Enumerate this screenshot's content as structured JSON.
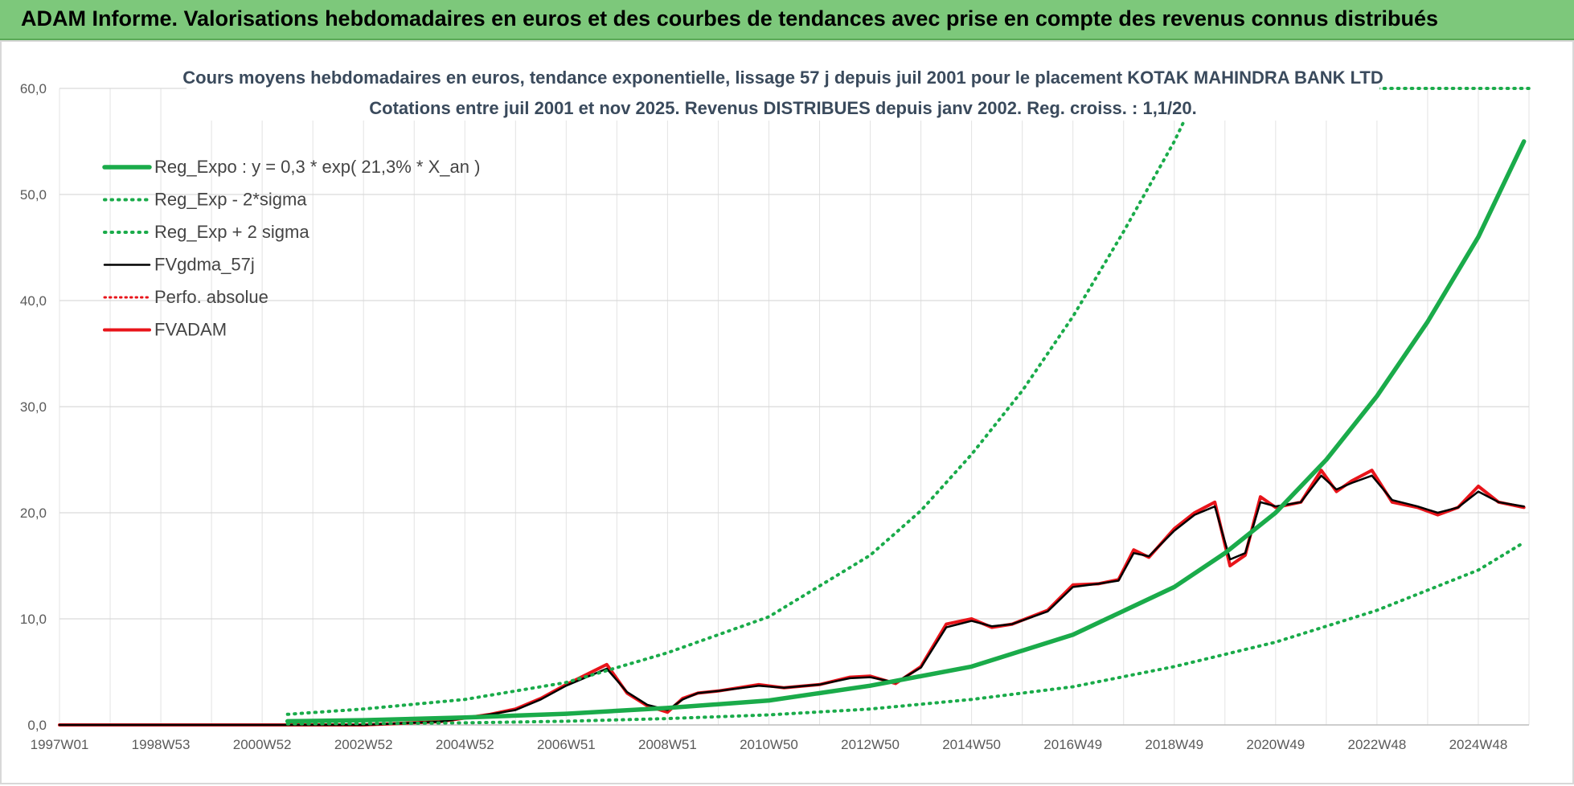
{
  "banner": {
    "title": "ADAM Informe. Valorisations hebdomadaires en euros et des courbes de tendances avec prise en compte des revenus connus distribués"
  },
  "colors": {
    "banner_bg": "#7dc87b",
    "regression": "#1aab4a",
    "price": "#e8141a",
    "smooth": "#000000"
  },
  "chart_data": {
    "type": "line",
    "title_line1": "Cours moyens hebdomadaires en euros, tendance exponentielle, lissage 57 j depuis juil 2001 pour le placement KOTAK MAHINDRA BANK LTD",
    "title_line2": "Cotations entre juil 2001 et nov 2025. Revenus DISTRIBUES depuis janv 2002. Reg. croiss. : 1,1/20.",
    "xlim": [
      1997.0,
      2026.0
    ],
    "ylim": [
      0,
      60
    ],
    "yticks": [
      0,
      10,
      20,
      30,
      40,
      50,
      60
    ],
    "ytick_labels": [
      "0,0",
      "10,0",
      "20,0",
      "30,0",
      "40,0",
      "50,0",
      "60,0"
    ],
    "xticks": [
      1997.0,
      1999.0,
      2001.0,
      2003.0,
      2005.0,
      2007.0,
      2009.0,
      2011.0,
      2013.0,
      2015.0,
      2017.0,
      2019.0,
      2021.0,
      2023.0,
      2025.0
    ],
    "xtick_labels": [
      "1997W01",
      "1998W53",
      "2000W52",
      "2002W52",
      "2004W52",
      "2006W51",
      "2008W51",
      "2010W50",
      "2012W50",
      "2014W50",
      "2016W49",
      "2018W49",
      "2020W49",
      "2022W48",
      "2024W48"
    ],
    "legend": [
      {
        "key": "reg",
        "label": "Reg_Expo : y = 0,3 * exp( 21,3% *  X_an )",
        "style": "solid-thick",
        "color": "#1aab4a"
      },
      {
        "key": "low",
        "label": "Reg_Exp - 2*sigma",
        "style": "dotted",
        "color": "#1aab4a"
      },
      {
        "key": "high",
        "label": "Reg_Exp + 2 sigma",
        "style": "dotted",
        "color": "#1aab4a"
      },
      {
        "key": "smooth",
        "label": "FVgdma_57j",
        "style": "solid",
        "color": "#000000"
      },
      {
        "key": "perf",
        "label": "Perfo. absolue",
        "style": "dotted",
        "color": "#e8141a"
      },
      {
        "key": "price",
        "label": "FVADAM",
        "style": "solid-thick",
        "color": "#e8141a"
      }
    ],
    "series": [
      {
        "name": "Reg_Expo",
        "x": [
          2001.5,
          2003.0,
          2005.0,
          2007.0,
          2009.0,
          2011.0,
          2013.0,
          2015.0,
          2017.0,
          2019.0,
          2020.0,
          2021.0,
          2022.0,
          2023.0,
          2024.0,
          2025.0,
          2025.9
        ],
        "y": [
          0.35,
          0.45,
          0.7,
          1.05,
          1.6,
          2.3,
          3.7,
          5.5,
          8.5,
          13.0,
          16.2,
          20.0,
          25.0,
          31.0,
          38.0,
          46.0,
          55.0
        ]
      },
      {
        "name": "Reg_Exp - 2*sigma",
        "x": [
          2001.5,
          2003.0,
          2005.0,
          2007.0,
          2009.0,
          2011.0,
          2013.0,
          2015.0,
          2017.0,
          2019.0,
          2021.0,
          2023.0,
          2025.0,
          2025.9
        ],
        "y": [
          0.1,
          0.12,
          0.2,
          0.35,
          0.6,
          0.95,
          1.5,
          2.4,
          3.6,
          5.5,
          7.8,
          10.8,
          14.6,
          17.2
        ]
      },
      {
        "name": "Reg_Exp + 2 sigma",
        "x": [
          2001.5,
          2003.0,
          2005.0,
          2007.0,
          2009.0,
          2011.0,
          2013.0,
          2014.0,
          2015.0,
          2016.0,
          2017.0,
          2018.0,
          2019.0,
          2019.5
        ],
        "y": [
          1.0,
          1.5,
          2.4,
          4.0,
          6.8,
          10.2,
          16.0,
          20.2,
          25.5,
          31.5,
          38.5,
          46.5,
          55.0,
          60.0
        ]
      },
      {
        "name": "FVADAM",
        "x": [
          1997.0,
          2003.0,
          2004.5,
          2005.5,
          2006.0,
          2006.5,
          2007.0,
          2007.8,
          2008.2,
          2008.6,
          2009.0,
          2009.3,
          2009.6,
          2010.0,
          2010.8,
          2011.3,
          2012.0,
          2012.6,
          2013.0,
          2013.5,
          2014.0,
          2014.5,
          2015.0,
          2015.4,
          2015.8,
          2016.5,
          2017.0,
          2017.5,
          2017.9,
          2018.2,
          2018.5,
          2019.0,
          2019.4,
          2019.8,
          2020.1,
          2020.4,
          2020.7,
          2021.0,
          2021.5,
          2021.9,
          2022.2,
          2022.5,
          2022.9,
          2023.3,
          2023.8,
          2024.2,
          2024.6,
          2025.0,
          2025.4,
          2025.9
        ],
        "y": [
          0.0,
          0.0,
          0.3,
          1.0,
          1.5,
          2.5,
          3.8,
          5.7,
          3.0,
          1.8,
          1.2,
          2.5,
          3.0,
          3.2,
          3.8,
          3.5,
          3.8,
          4.5,
          4.6,
          3.9,
          5.5,
          9.5,
          10.0,
          9.2,
          9.5,
          10.8,
          13.2,
          13.3,
          13.7,
          16.5,
          15.8,
          18.5,
          20.0,
          21.0,
          15.0,
          16.0,
          21.5,
          20.5,
          21.0,
          24.0,
          22.0,
          23.0,
          24.0,
          21.0,
          20.5,
          19.8,
          20.5,
          22.5,
          21.0,
          20.5
        ]
      },
      {
        "name": "FVgdma_57j",
        "x": [
          1997.0,
          2003.0,
          2004.5,
          2005.5,
          2006.0,
          2006.5,
          2007.0,
          2007.8,
          2008.2,
          2008.6,
          2009.0,
          2009.3,
          2009.6,
          2010.0,
          2010.8,
          2011.3,
          2012.0,
          2012.6,
          2013.0,
          2013.5,
          2014.0,
          2014.5,
          2015.0,
          2015.4,
          2015.8,
          2016.5,
          2017.0,
          2017.5,
          2017.9,
          2018.2,
          2018.5,
          2019.0,
          2019.4,
          2019.8,
          2020.1,
          2020.4,
          2020.7,
          2021.0,
          2021.5,
          2021.9,
          2022.2,
          2022.5,
          2022.9,
          2023.3,
          2023.8,
          2024.2,
          2024.6,
          2025.0,
          2025.4,
          2025.9
        ],
        "y": [
          0.0,
          0.0,
          0.3,
          1.0,
          1.4,
          2.4,
          3.7,
          5.3,
          3.1,
          1.9,
          1.4,
          2.4,
          3.0,
          3.2,
          3.7,
          3.5,
          3.8,
          4.4,
          4.5,
          4.0,
          5.4,
          9.2,
          9.8,
          9.3,
          9.5,
          10.7,
          13.0,
          13.3,
          13.6,
          16.2,
          15.9,
          18.3,
          19.8,
          20.6,
          15.6,
          16.2,
          21.0,
          20.6,
          21.0,
          23.5,
          22.2,
          22.8,
          23.5,
          21.2,
          20.6,
          20.0,
          20.5,
          22.0,
          21.0,
          20.6
        ]
      }
    ]
  }
}
